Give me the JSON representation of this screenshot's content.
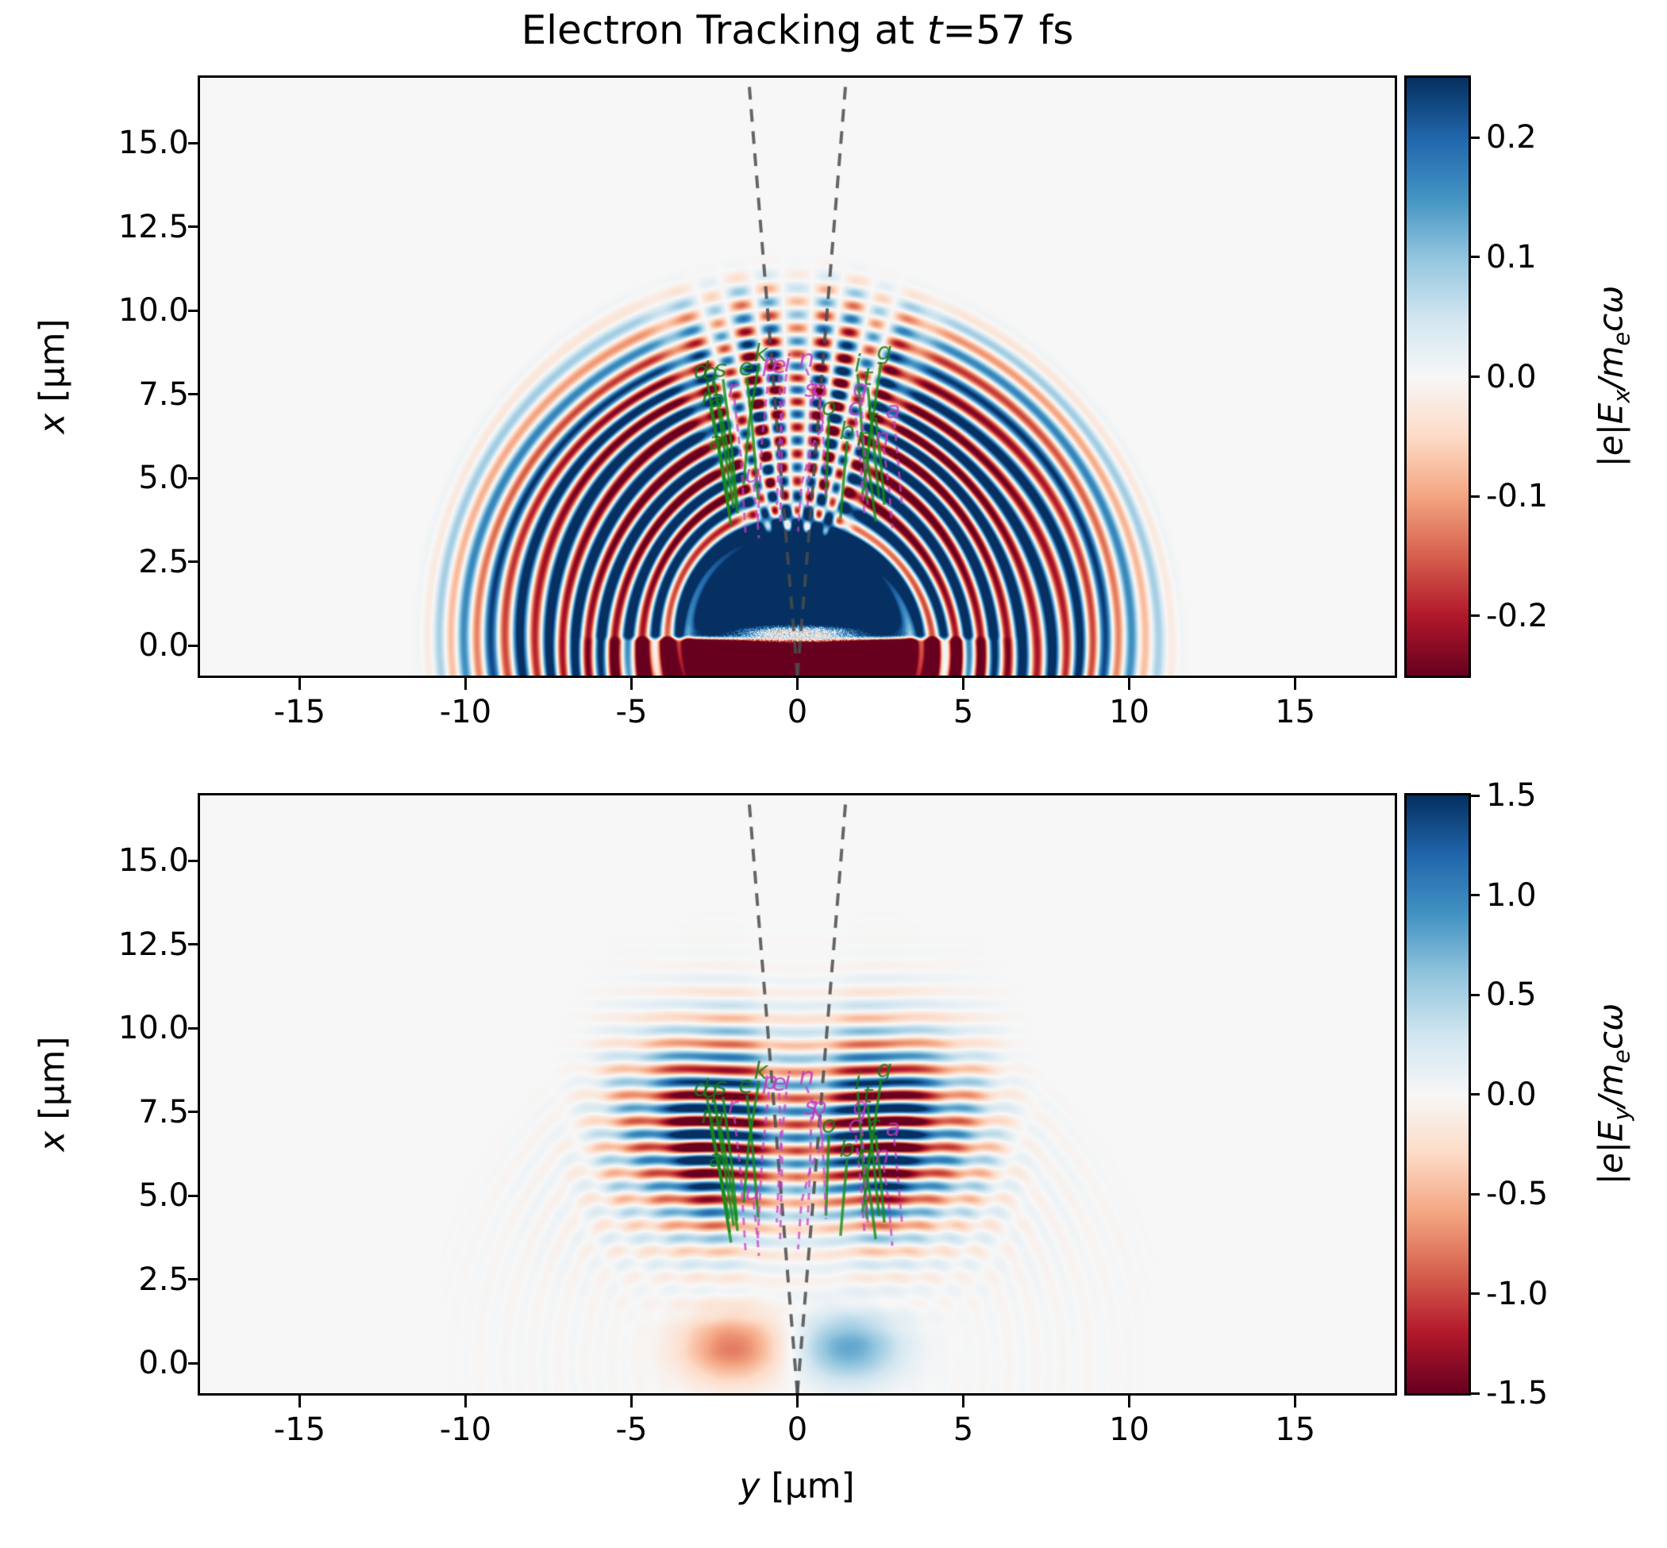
{
  "figure": {
    "title": {
      "prefix": "Electron Tracking at ",
      "var": "t",
      "rest": "=57 fs"
    },
    "background": "#ffffff",
    "plot_bg": "#f7f7f7"
  },
  "xlabel": {
    "var": "y",
    "unit": " [μm]"
  },
  "panels": [
    {
      "id": "ex",
      "ylabel": {
        "var": "x",
        "unit": " [μm]"
      },
      "ytick_vals": [
        15.0,
        12.5,
        10.0,
        7.5,
        5.0,
        2.5,
        0.0
      ],
      "ytick_labels": [
        "15.0",
        "12.5",
        "10.0",
        "7.5",
        "5.0",
        "2.5",
        "0.0"
      ],
      "xtick_vals": [
        -15,
        -10,
        -5,
        0,
        5,
        10,
        15
      ],
      "xtick_labels": [
        "-15",
        "-10",
        "-5",
        "0",
        "5",
        "10",
        "15"
      ],
      "colorbar": {
        "vmin": -0.25,
        "vmax": 0.25,
        "tick_vals": [
          0.2,
          0.1,
          0.0,
          -0.1,
          -0.2
        ],
        "tick_labels": [
          "0.2",
          "0.1",
          "0.0",
          "-0.1",
          "-0.2"
        ],
        "label": {
          "l1": "|e|E",
          "l1sub": "x",
          "l2": "/m",
          "l2sub": "e",
          "l3": "cω"
        }
      }
    },
    {
      "id": "ey",
      "ylabel": {
        "var": "x",
        "unit": " [μm]"
      },
      "ytick_vals": [
        15.0,
        12.5,
        10.0,
        7.5,
        5.0,
        2.5,
        0.0
      ],
      "ytick_labels": [
        "15.0",
        "12.5",
        "10.0",
        "7.5",
        "5.0",
        "2.5",
        "0.0"
      ],
      "xtick_vals": [
        -15,
        -10,
        -5,
        0,
        5,
        10,
        15
      ],
      "xtick_labels": [
        "-15",
        "-10",
        "-5",
        "0",
        "5",
        "10",
        "15"
      ],
      "colorbar": {
        "vmin": -1.5,
        "vmax": 1.5,
        "tick_vals": [
          1.5,
          1.0,
          0.5,
          0.0,
          -0.5,
          -1.0,
          -1.5
        ],
        "tick_labels": [
          "1.5",
          "1.0",
          "0.5",
          "0.0",
          "-0.5",
          "-1.0",
          "-1.5"
        ],
        "label": {
          "l1": "|e|E",
          "l1sub": "y",
          "l2": "/m",
          "l2sub": "e",
          "l3": "cω"
        }
      }
    }
  ],
  "chart_data": {
    "type": "heatmap",
    "title": "Electron Tracking at t=57 fs",
    "time_fs": 57,
    "shared_x": {
      "label": "y [μm]",
      "lim": [
        -18,
        18
      ],
      "ticks": [
        -15,
        -10,
        -5,
        0,
        5,
        10,
        15
      ]
    },
    "shared_y": {
      "label": "x [μm]",
      "lim": [
        -0.9,
        16.95
      ],
      "ticks": [
        15.0,
        12.5,
        10.0,
        7.5,
        5.0,
        2.5,
        0.0
      ]
    },
    "panels": [
      {
        "name": "Ex",
        "colorbar_label": "|e|Ex/(me c omega)",
        "clim": [
          -0.25,
          0.25
        ],
        "colorbar_ticks": [
          0.2,
          0.1,
          0.0,
          -0.1,
          -0.2
        ],
        "wavelength_um": 0.8,
        "description": "Hemispherical wavefronts of alternating sign radiating from origin out to r~11.5 um; saturated blue dome r<3.4 above surface; saturated negative (red) slab at x<0.3, |y|<5 with white speckled gap near x~0.35,|y|<2.2; checkerboard angular modulation inside ~20-degree cone about the vertical axis."
      },
      {
        "name": "Ey",
        "colorbar_label": "|e|Ey/(me c omega)",
        "clim": [
          -1.5,
          1.5
        ],
        "colorbar_ticks": [
          1.5,
          1.0,
          0.5,
          0.0,
          -0.5,
          -1.0,
          -1.5
        ],
        "wavelength_um": 0.78,
        "description": "Horizontally striped laser pulse packet between x~3.5 and 10.5, two amplitude lobes at y~±2.5 with a pinched null along y=0; faint concentric rings r~4-11; antisymmetric near-surface blobs: negative (red) at (y,x)=(-1.95,0.45), positive (blue) at (1.55,0.45)."
      }
    ],
    "colormap": {
      "name": "RdBu_r",
      "anchors": [
        [
          103,
          0,
          31
        ],
        [
          178,
          24,
          43
        ],
        [
          214,
          96,
          77
        ],
        [
          244,
          165,
          130
        ],
        [
          253,
          219,
          199
        ],
        [
          247,
          247,
          247
        ],
        [
          209,
          229,
          240
        ],
        [
          146,
          197,
          222
        ],
        [
          67,
          147,
          195
        ],
        [
          33,
          102,
          172
        ],
        [
          5,
          48,
          97
        ]
      ]
    },
    "cone": {
      "apex": [
        0,
        -0.9
      ],
      "top_left": [
        -1.47,
        16.95
      ],
      "top_right": [
        1.47,
        16.95
      ],
      "style": "gray dashed"
    },
    "overlay_colors": {
      "green_track": "#178c17",
      "magenta_track": "#c33fc3",
      "cone": "#4b4b4b"
    },
    "tracks": [
      {
        "c": "g",
        "l": "d",
        "h": -2.9,
        "v": 8.15,
        "p": [
          [
            -2.72,
            7.9
          ],
          [
            -2.4,
            6.1
          ],
          [
            -2.06,
            4.3
          ]
        ]
      },
      {
        "c": "g",
        "l": "q",
        "h": -2.62,
        "v": 8.12,
        "p": [
          [
            -2.5,
            7.88
          ],
          [
            -2.22,
            6.0
          ],
          [
            -1.92,
            4.1
          ]
        ]
      },
      {
        "c": "g",
        "l": "s",
        "h": -2.32,
        "v": 8.2,
        "p": [
          [
            -2.24,
            7.95
          ],
          [
            -2.0,
            6.1
          ],
          [
            -1.82,
            4.25
          ]
        ]
      },
      {
        "c": "g",
        "l": "e",
        "h": -1.55,
        "v": 8.25,
        "p": [
          [
            -1.52,
            8.0
          ],
          [
            -1.34,
            6.3
          ],
          [
            -1.18,
            4.35
          ]
        ]
      },
      {
        "c": "g",
        "l": "k",
        "h": -1.1,
        "v": 8.68,
        "p": [
          [
            -1.16,
            8.42
          ],
          [
            -1.46,
            6.6
          ],
          [
            -1.62,
            4.8
          ]
        ]
      },
      {
        "c": "g",
        "l": "r",
        "h": -2.75,
        "v": 7.35,
        "p": [
          [
            -2.62,
            7.1
          ],
          [
            -2.3,
            5.5
          ],
          [
            -2.04,
            3.9
          ]
        ]
      },
      {
        "c": "g",
        "l": "a",
        "h": -2.42,
        "v": 7.3,
        "p": [
          [
            -2.32,
            7.05
          ],
          [
            -2.02,
            5.4
          ],
          [
            -1.8,
            3.95
          ]
        ]
      },
      {
        "c": "g",
        "l": "a",
        "h": -2.45,
        "v": 6.05,
        "p": [
          [
            -2.36,
            5.82
          ],
          [
            -2.2,
            4.8
          ],
          [
            -2.0,
            3.6
          ]
        ]
      },
      {
        "c": "g",
        "l": "g",
        "h": 2.62,
        "v": 8.72,
        "p": [
          [
            2.52,
            8.46
          ],
          [
            2.22,
            6.4
          ],
          [
            1.96,
            4.5
          ]
        ]
      },
      {
        "c": "g",
        "l": "i",
        "h": 1.82,
        "v": 8.36,
        "p": [
          [
            1.82,
            8.1
          ],
          [
            1.96,
            6.2
          ],
          [
            2.1,
            4.3
          ]
        ]
      },
      {
        "c": "g",
        "l": "t",
        "h": 2.12,
        "v": 7.96,
        "p": [
          [
            2.12,
            7.7
          ],
          [
            2.3,
            6.0
          ],
          [
            2.46,
            4.4
          ]
        ]
      },
      {
        "c": "g",
        "l": "o",
        "h": 0.95,
        "v": 7.06,
        "p": [
          [
            0.95,
            6.8
          ],
          [
            0.9,
            5.5
          ],
          [
            0.86,
            4.4
          ]
        ]
      },
      {
        "c": "g",
        "l": "b",
        "h": 1.5,
        "v": 6.36,
        "p": [
          [
            1.5,
            6.1
          ],
          [
            1.4,
            5.0
          ],
          [
            1.3,
            3.8
          ]
        ]
      },
      {
        "c": "g",
        "l": "c",
        "h": 2.3,
        "v": 7.06,
        "p": [
          [
            2.36,
            6.8
          ],
          [
            2.52,
            5.4
          ],
          [
            2.62,
            4.2
          ]
        ]
      },
      {
        "c": "g",
        "l": "n",
        "h": 2.02,
        "v": 6.16,
        "p": [
          [
            2.06,
            5.9
          ],
          [
            2.22,
            4.8
          ],
          [
            2.36,
            3.7
          ]
        ]
      },
      {
        "c": "m",
        "l": "p",
        "h": -0.82,
        "v": 8.36,
        "p": [
          [
            -0.86,
            8.1
          ],
          [
            -1.06,
            6.2
          ],
          [
            -1.2,
            3.6
          ]
        ]
      },
      {
        "c": "m",
        "l": "e",
        "h": -0.55,
        "v": 8.32,
        "p": [
          [
            -0.55,
            8.06
          ],
          [
            -0.46,
            6.0
          ],
          [
            -0.52,
            3.7
          ]
        ]
      },
      {
        "c": "m",
        "l": "i",
        "h": -0.3,
        "v": 8.36,
        "p": [
          [
            -0.33,
            8.1
          ],
          [
            -0.52,
            6.3
          ],
          [
            -0.62,
            4.2
          ]
        ]
      },
      {
        "c": "m",
        "l": "n",
        "h": 0.28,
        "v": 8.52,
        "p": [
          [
            0.26,
            8.26
          ],
          [
            0.62,
            7.4
          ],
          [
            0.78,
            6.6
          ],
          [
            0.42,
            5.9
          ],
          [
            0.12,
            4.8
          ],
          [
            0.02,
            3.4
          ]
        ]
      },
      {
        "c": "m",
        "l": "s",
        "h": 0.4,
        "v": 7.62,
        "p": [
          [
            0.42,
            7.36
          ],
          [
            0.38,
            5.8
          ],
          [
            0.3,
            4.0
          ]
        ]
      },
      {
        "c": "m",
        "l": "p",
        "h": 0.66,
        "v": 7.62,
        "p": [
          [
            0.68,
            7.36
          ],
          [
            0.8,
            5.9
          ],
          [
            0.86,
            4.3
          ]
        ]
      },
      {
        "c": "m",
        "l": "r",
        "h": -1.95,
        "v": 7.62,
        "p": [
          [
            -1.9,
            7.36
          ],
          [
            -1.7,
            5.6
          ],
          [
            -1.56,
            3.3
          ]
        ]
      },
      {
        "c": "m",
        "l": "q",
        "h": 1.9,
        "v": 7.62,
        "p": [
          [
            1.92,
            7.36
          ],
          [
            2.02,
            5.8
          ],
          [
            2.12,
            4.2
          ]
        ]
      },
      {
        "c": "m",
        "l": "c",
        "h": 1.72,
        "v": 7.06,
        "p": [
          [
            1.76,
            6.8
          ],
          [
            1.92,
            5.3
          ],
          [
            2.02,
            3.9
          ]
        ]
      },
      {
        "c": "m",
        "l": "a",
        "h": 2.88,
        "v": 6.96,
        "p": [
          [
            2.92,
            6.7
          ],
          [
            3.06,
            5.2
          ],
          [
            3.16,
            4.1
          ]
        ]
      },
      {
        "c": "m",
        "l": "n",
        "h": 2.55,
        "v": 6.16,
        "p": [
          [
            2.6,
            5.9
          ],
          [
            2.76,
            4.7
          ],
          [
            2.86,
            3.5
          ]
        ]
      },
      {
        "c": "m",
        "l": "u",
        "h": -1.35,
        "v": 5.06,
        "p": [
          [
            -1.32,
            4.8
          ],
          [
            -1.22,
            3.9
          ],
          [
            -1.16,
            3.2
          ]
        ]
      }
    ]
  }
}
